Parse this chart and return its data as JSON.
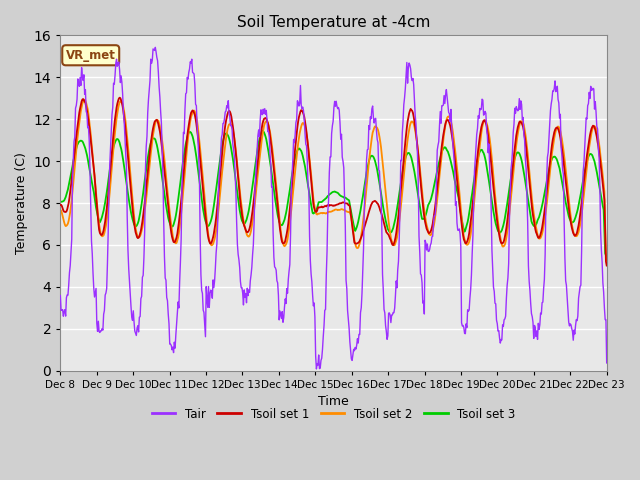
{
  "title": "Soil Temperature at -4cm",
  "xlabel": "Time",
  "ylabel": "Temperature (C)",
  "ylim": [
    0,
    16
  ],
  "tick_labels": [
    "Dec 8",
    "Dec 9",
    "Dec 10",
    "Dec 11",
    "Dec 12",
    "Dec 13",
    "Dec 14",
    "Dec 15",
    "Dec 16",
    "Dec 17",
    "Dec 18",
    "Dec 19",
    "Dec 20",
    "Dec 21",
    "Dec 22",
    "Dec 23"
  ],
  "colors": {
    "Tair": "#9B30FF",
    "Tsoil1": "#CC0000",
    "Tsoil2": "#FF8C00",
    "Tsoil3": "#00CC00"
  },
  "legend_labels": [
    "Tair",
    "Tsoil set 1",
    "Tsoil set 2",
    "Tsoil set 3"
  ],
  "annotation_text": "VR_met",
  "annotation_bg": "#FFFFCC",
  "annotation_border": "#8B4513"
}
